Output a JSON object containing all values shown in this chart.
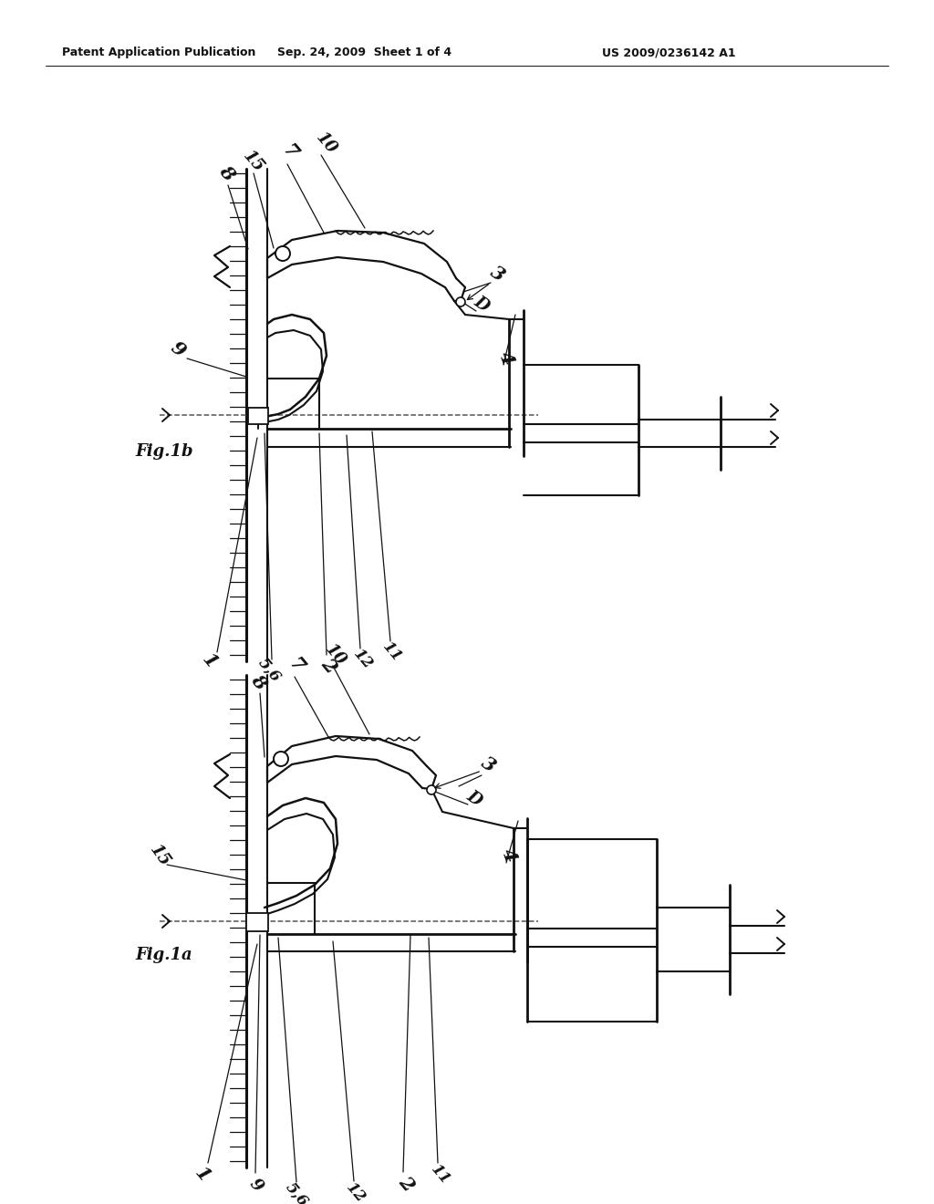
{
  "background_color": "#ffffff",
  "header_left": "Patent Application Publication",
  "header_mid": "Sep. 24, 2009  Sheet 1 of 4",
  "header_right": "US 2009/0236142 A1",
  "fig1b_label": "Fig.1b",
  "fig1a_label": "Fig.1a",
  "page_width": 10.24,
  "page_height": 13.2,
  "dpi": 100
}
